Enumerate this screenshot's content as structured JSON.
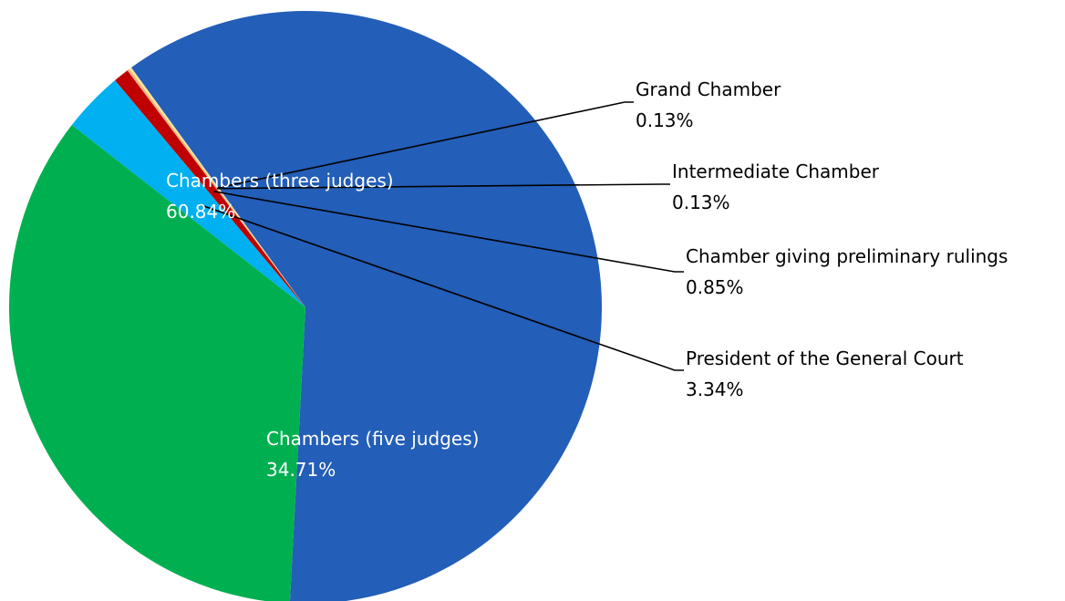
{
  "chart_data": {
    "type": "pie",
    "slices": [
      {
        "label": "Chambers (three judges)",
        "value": 60.84,
        "display": "60.84%",
        "color": "#235EB8"
      },
      {
        "label": "Chambers (five judges)",
        "value": 34.71,
        "display": "34.71%",
        "color": "#00B050"
      },
      {
        "label": "President of the General Court",
        "value": 3.34,
        "display": "3.34%",
        "color": "#00B0F0"
      },
      {
        "label": "Chamber giving preliminary rulings",
        "value": 0.85,
        "display": "0.85%",
        "color": "#C00000"
      },
      {
        "label": "Intermediate Chamber",
        "value": 0.13,
        "display": "0.13%",
        "color": "#F4B183"
      },
      {
        "label": "Grand Chamber",
        "value": 0.13,
        "display": "0.13%",
        "color": "#FFE699"
      }
    ],
    "legend": "none"
  }
}
